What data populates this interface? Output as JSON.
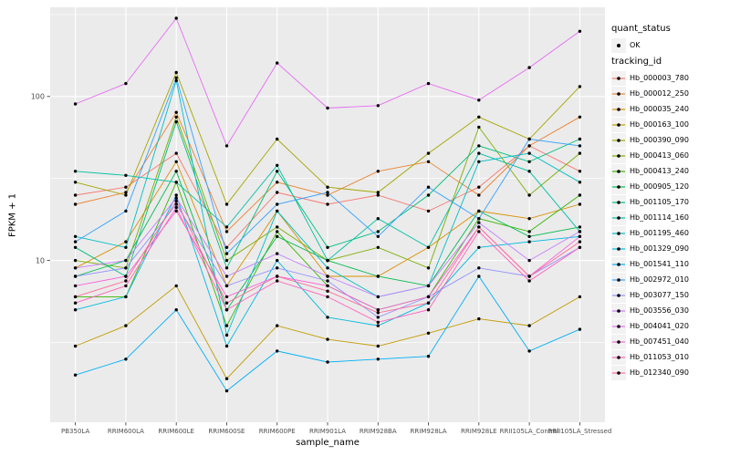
{
  "figure": {
    "background": "#FFFFFF",
    "panel_background": "#EBEBEB",
    "grid_color": "#FFFFFF",
    "tick_label_color": "#4D4D4D",
    "point_color": "#000000"
  },
  "legend": {
    "quant_status_title": "quant_status",
    "ok_label": "OK",
    "tracking_id_title": "tracking_id"
  },
  "chart_data": {
    "type": "line",
    "title": "",
    "xlabel": "sample_name",
    "ylabel": "FPKM + 1",
    "y_scale": "log10",
    "ylim": [
      1.03,
      350
    ],
    "y_major_ticks": [
      10,
      100
    ],
    "y_minor_ticks": [
      3.162,
      31.62,
      316.2
    ],
    "grid": true,
    "legend_position": "right",
    "point_shape": "circle",
    "point_color": "#000000",
    "categories": [
      "PB350LA",
      "RRIM600LA",
      "RRIM600LE",
      "RRIM600SE",
      "RRIM600PE",
      "RRIM901LA",
      "RRIM928BA",
      "RRIM928LA",
      "RRIM928LE",
      "RRII105LA_Control",
      "RRII105LA_Stressed"
    ],
    "quant_status": "OK",
    "series": [
      {
        "name": "Hb_000003_780",
        "color": "#F8766D",
        "values": [
          25,
          28,
          45,
          12,
          26,
          22,
          25,
          20,
          28,
          50,
          35
        ]
      },
      {
        "name": "Hb_000012_250",
        "color": "#EA8331",
        "values": [
          22,
          26,
          80,
          15,
          30,
          25,
          35,
          40,
          25,
          50,
          75
        ]
      },
      {
        "name": "Hb_000035_240",
        "color": "#D89000",
        "values": [
          9,
          13,
          40,
          7,
          20,
          8,
          8,
          12,
          20,
          18,
          22
        ]
      },
      {
        "name": "Hb_000163_100",
        "color": "#C09B00",
        "values": [
          3,
          4,
          7,
          1.9,
          4,
          3.3,
          3,
          3.6,
          4.4,
          4,
          6
        ]
      },
      {
        "name": "Hb_000390_090",
        "color": "#A3A500",
        "values": [
          30,
          25,
          140,
          22,
          55,
          28,
          26,
          45,
          75,
          55,
          115
        ]
      },
      {
        "name": "Hb_000413_060",
        "color": "#7CAE00",
        "values": [
          10,
          9,
          75,
          10,
          16,
          10,
          12,
          9,
          65,
          25,
          45
        ]
      },
      {
        "name": "Hb_000413_240",
        "color": "#39B600",
        "values": [
          6,
          6,
          30,
          4,
          15,
          7,
          5,
          6,
          18,
          15,
          25
        ]
      },
      {
        "name": "Hb_000905_120",
        "color": "#00BB4E",
        "values": [
          8,
          10,
          35,
          5,
          14,
          10,
          8,
          7,
          20,
          14,
          16
        ]
      },
      {
        "name": "Hb_001105_170",
        "color": "#00BF7D",
        "values": [
          12,
          8,
          70,
          9,
          35,
          12,
          15,
          25,
          50,
          40,
          55
        ]
      },
      {
        "name": "Hb_001114_160",
        "color": "#00C1A3",
        "values": [
          35,
          33,
          30,
          16,
          38,
          10,
          18,
          12,
          45,
          35,
          15
        ]
      },
      {
        "name": "Hb_001195_460",
        "color": "#00BFC4",
        "values": [
          14,
          12,
          125,
          3.5,
          20,
          9,
          6,
          7,
          40,
          45,
          30
        ]
      },
      {
        "name": "Hb_001329_090",
        "color": "#00BAE0",
        "values": [
          5,
          6,
          25,
          3,
          10,
          4.5,
          4,
          5.5,
          12,
          13,
          14
        ]
      },
      {
        "name": "Hb_001541_110",
        "color": "#00B0F6",
        "values": [
          2,
          2.5,
          5,
          1.6,
          2.8,
          2.4,
          2.5,
          2.6,
          8,
          2.8,
          3.8
        ]
      },
      {
        "name": "Hb_002972_010",
        "color": "#35A2FF",
        "values": [
          13,
          20,
          130,
          11,
          22,
          26,
          14,
          28,
          18,
          55,
          50
        ]
      },
      {
        "name": "Hb_003077_150",
        "color": "#9590FF",
        "values": [
          8,
          9,
          22,
          7,
          9,
          7.5,
          4.5,
          6,
          9,
          8,
          12
        ]
      },
      {
        "name": "Hb_003556_030",
        "color": "#C77CFF",
        "values": [
          9,
          10,
          24,
          8,
          11,
          8,
          6,
          7,
          17,
          10,
          15
        ]
      },
      {
        "name": "Hb_004041_020",
        "color": "#E76BF3",
        "values": [
          90,
          120,
          300,
          50,
          160,
          85,
          88,
          120,
          95,
          150,
          250
        ]
      },
      {
        "name": "Hb_007451_040",
        "color": "#FA62DB",
        "values": [
          7,
          8,
          20,
          6,
          8,
          7,
          5,
          6,
          16,
          8,
          14
        ]
      },
      {
        "name": "Hb_011053_010",
        "color": "#FF62BC",
        "values": [
          5.5,
          7,
          21,
          5,
          7.5,
          6,
          4.2,
          5,
          15,
          7.5,
          12
        ]
      },
      {
        "name": "Hb_012340_090",
        "color": "#FF6A98",
        "values": [
          6,
          7.5,
          23,
          5.5,
          8,
          6.5,
          4.8,
          5.5,
          16,
          8,
          13
        ]
      }
    ]
  }
}
